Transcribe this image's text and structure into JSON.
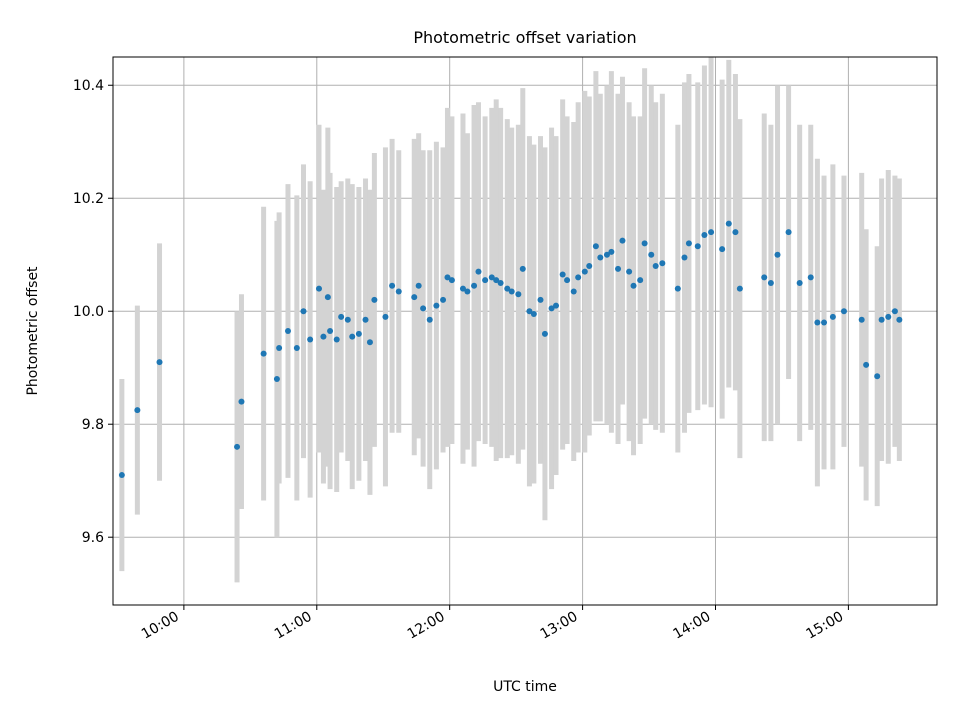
{
  "chart_data": {
    "type": "scatter",
    "title": "Photometric offset variation",
    "xlabel": "UTC time",
    "ylabel": "Photometric offset",
    "x_axis_kind": "time",
    "xlim": [
      "09:28",
      "15:40"
    ],
    "ylim": [
      9.48,
      10.45
    ],
    "x_ticks": [
      "10:00",
      "11:00",
      "12:00",
      "13:00",
      "14:00",
      "15:00"
    ],
    "y_ticks": [
      "9.6",
      "9.8",
      "10.0",
      "10.2",
      "10.4"
    ],
    "grid": true,
    "legend": "none",
    "colors": {
      "points": "#1f77b4",
      "errorbars": "#d3d3d3",
      "grid": "#b0b0b0"
    },
    "series": [
      {
        "x": [
          "09:32",
          "09:39",
          "09:49",
          "10:24",
          "10:26",
          "10:36",
          "10:42",
          "10:43",
          "10:47",
          "10:51",
          "10:54",
          "10:57",
          "11:01",
          "11:03",
          "11:05",
          "11:06",
          "11:09",
          "11:11",
          "11:14",
          "11:16",
          "11:19",
          "11:22",
          "11:24",
          "11:26",
          "11:31",
          "11:34",
          "11:37",
          "11:44",
          "11:46",
          "11:48",
          "11:51",
          "11:54",
          "11:57",
          "11:59",
          "12:01",
          "12:06",
          "12:08",
          "12:11",
          "12:13",
          "12:16",
          "12:19",
          "12:21",
          "12:23",
          "12:26",
          "12:28",
          "12:31",
          "12:33",
          "12:36",
          "12:38",
          "12:41",
          "12:43",
          "12:46",
          "12:48",
          "12:51",
          "12:53",
          "12:56",
          "12:58",
          "13:01",
          "13:03",
          "13:06",
          "13:08",
          "13:11",
          "13:13",
          "13:16",
          "13:18",
          "13:21",
          "13:23",
          "13:26",
          "13:28",
          "13:31",
          "13:33",
          "13:36",
          "13:43",
          "13:46",
          "13:48",
          "13:52",
          "13:55",
          "13:58",
          "14:03",
          "14:06",
          "14:09",
          "14:11",
          "14:22",
          "14:25",
          "14:28",
          "14:33",
          "14:38",
          "14:43",
          "14:46",
          "14:49",
          "14:53",
          "14:58",
          "15:06",
          "15:08",
          "15:13",
          "15:15",
          "15:18",
          "15:21",
          "15:23"
        ],
        "y": [
          9.71,
          9.825,
          9.91,
          9.76,
          9.84,
          9.925,
          9.88,
          9.935,
          9.965,
          9.935,
          10.0,
          9.95,
          10.04,
          9.955,
          10.025,
          9.965,
          9.95,
          9.99,
          9.985,
          9.955,
          9.96,
          9.985,
          9.945,
          10.02,
          9.99,
          10.045,
          10.035,
          10.025,
          10.045,
          10.005,
          9.985,
          10.01,
          10.02,
          10.06,
          10.055,
          10.04,
          10.035,
          10.045,
          10.07,
          10.055,
          10.06,
          10.055,
          10.05,
          10.04,
          10.035,
          10.03,
          10.075,
          10.0,
          9.995,
          10.02,
          9.96,
          10.005,
          10.01,
          10.065,
          10.055,
          10.035,
          10.06,
          10.07,
          10.08,
          10.115,
          10.095,
          10.1,
          10.105,
          10.075,
          10.125,
          10.07,
          10.045,
          10.055,
          10.12,
          10.1,
          10.08,
          10.085,
          10.04,
          10.095,
          10.12,
          10.115,
          10.135,
          10.14,
          10.11,
          10.155,
          10.14,
          10.04,
          10.06,
          10.05,
          10.1,
          10.14,
          10.05,
          10.06,
          9.98,
          9.98,
          9.99,
          10.0,
          9.985,
          9.905,
          9.885,
          9.985,
          9.99,
          10.0,
          9.985
        ],
        "err": [
          0.17,
          0.185,
          0.21,
          0.24,
          0.19,
          0.26,
          0.28,
          0.24,
          0.26,
          0.27,
          0.26,
          0.28,
          0.29,
          0.26,
          0.3,
          0.28,
          0.27,
          0.24,
          0.25,
          0.27,
          0.26,
          0.25,
          0.27,
          0.26,
          0.3,
          0.26,
          0.25,
          0.28,
          0.27,
          0.28,
          0.3,
          0.29,
          0.27,
          0.3,
          0.29,
          0.31,
          0.28,
          0.32,
          0.3,
          0.29,
          0.3,
          0.32,
          0.31,
          0.3,
          0.29,
          0.3,
          0.32,
          0.31,
          0.3,
          0.29,
          0.33,
          0.32,
          0.3,
          0.31,
          0.29,
          0.3,
          0.31,
          0.32,
          0.3,
          0.31,
          0.29,
          0.3,
          0.32,
          0.31,
          0.29,
          0.3,
          0.3,
          0.29,
          0.31,
          0.3,
          0.29,
          0.3,
          0.29,
          0.31,
          0.3,
          0.29,
          0.3,
          0.31,
          0.3,
          0.29,
          0.28,
          0.3,
          0.29,
          0.28,
          0.3,
          0.26,
          0.28,
          0.27,
          0.29,
          0.26,
          0.27,
          0.24,
          0.26,
          0.24,
          0.23,
          0.25,
          0.26,
          0.24,
          0.25
        ]
      }
    ]
  }
}
